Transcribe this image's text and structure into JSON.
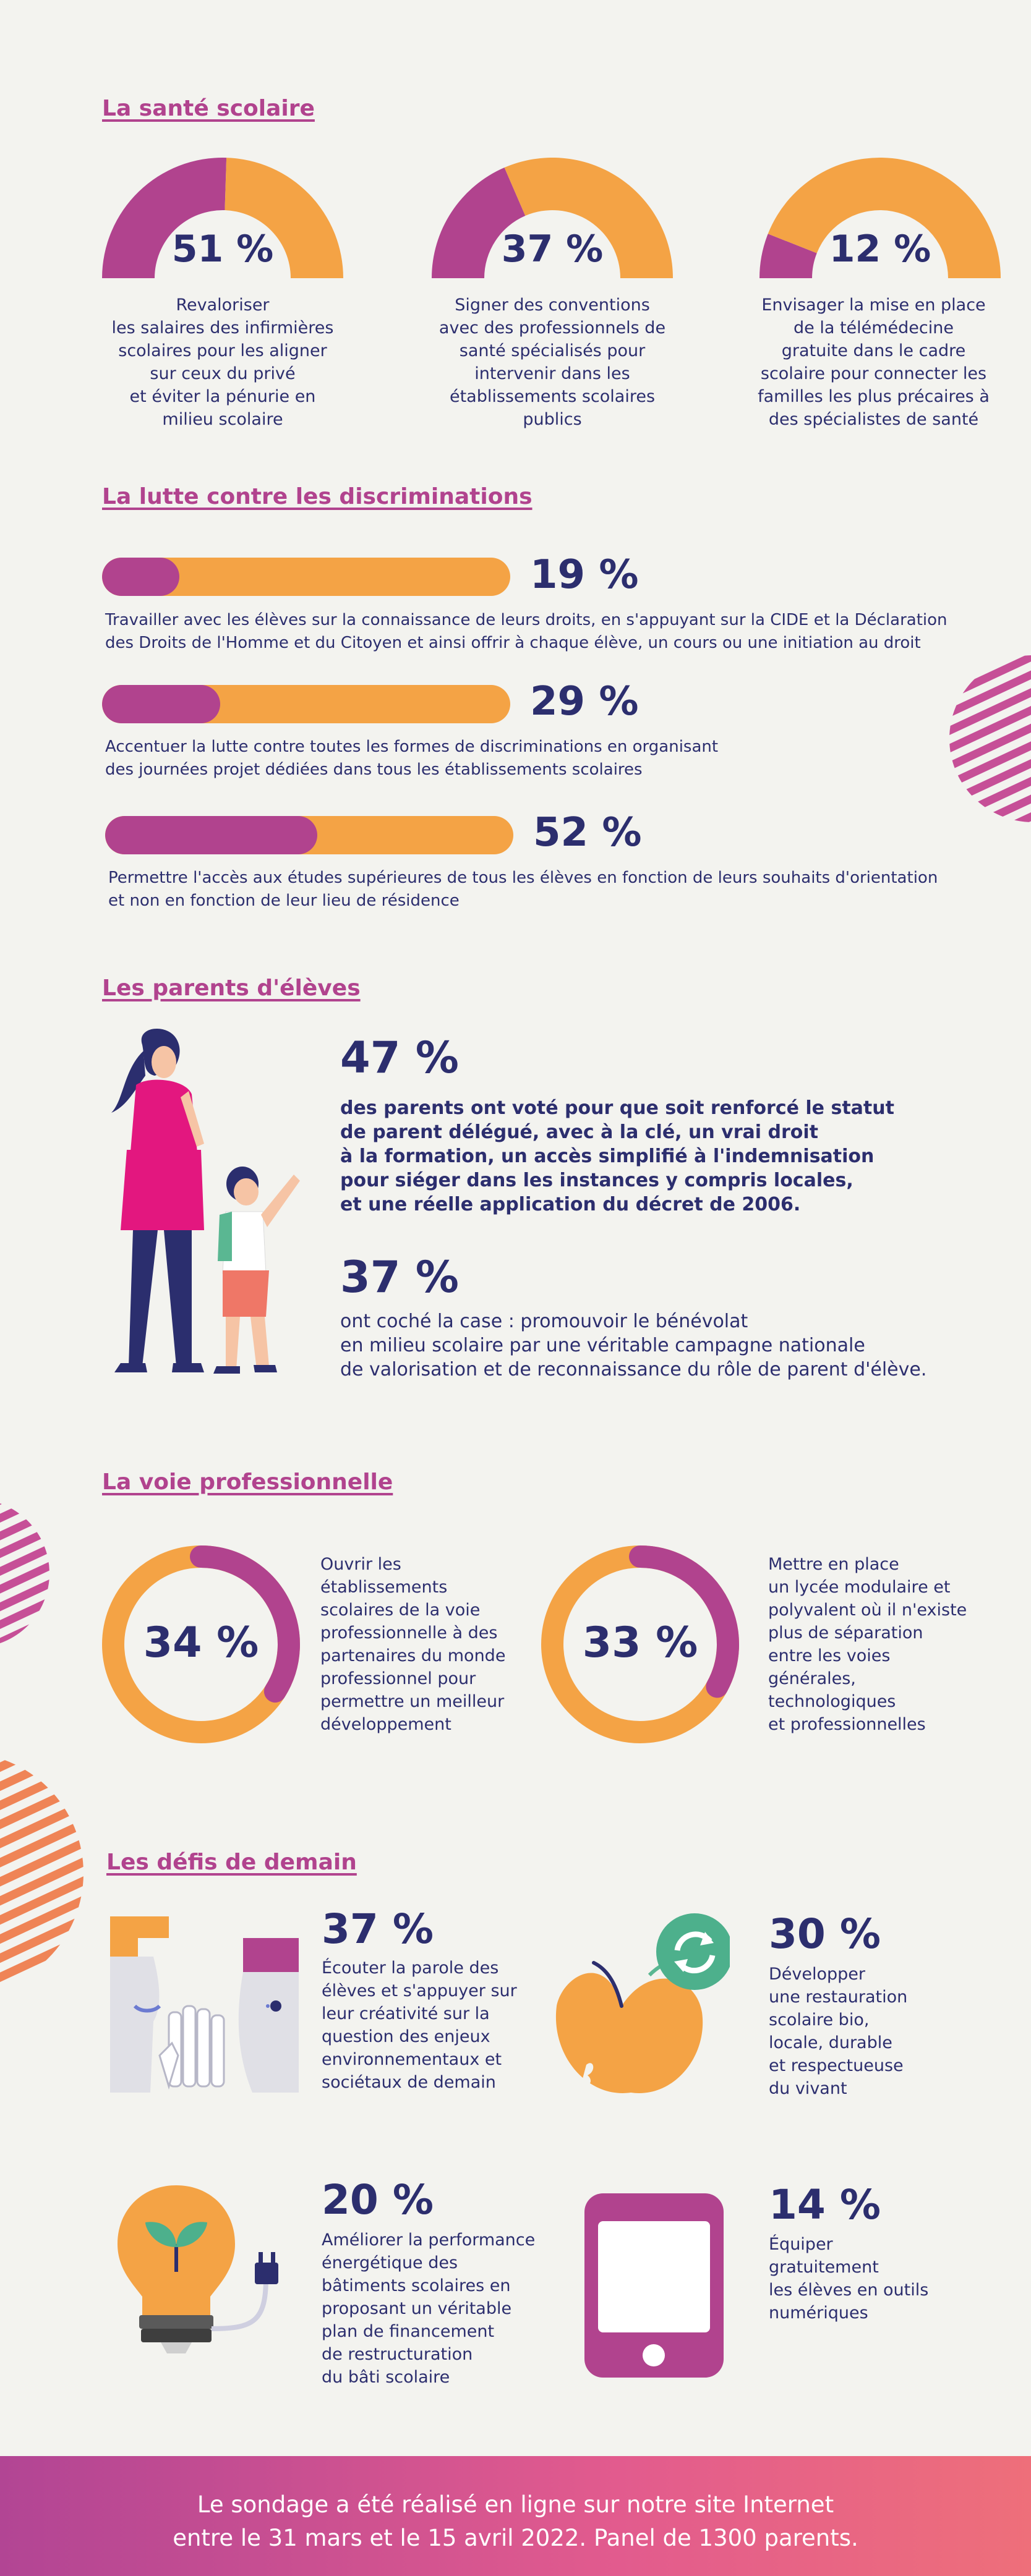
{
  "colors": {
    "purple": "#b1438e",
    "orange": "#f4a345",
    "navy": "#2c2e6e",
    "background": "#f3f3ef"
  },
  "sante": {
    "title": "La santé scolaire",
    "items": [
      {
        "pct": "51 %",
        "value": 51,
        "text": "Revaloriser\nles salaires des infirmières\nscolaires pour les aligner\nsur ceux du privé\net éviter la pénurie en\nmilieu scolaire"
      },
      {
        "pct": "37 %",
        "value": 37,
        "text": "Signer des conventions\navec des professionnels de\nsanté spécialisés pour\nintervenir dans les\nétablissements scolaires\npublics"
      },
      {
        "pct": "12 %",
        "value": 12,
        "text": "Envisager la mise en place\nde la télémédecine\ngratuite dans le cadre\nscolaire pour connecter les\nfamilles les plus précaires à\ndes spécialistes de santé"
      }
    ]
  },
  "discriminations": {
    "title": "La lutte contre les discriminations",
    "items": [
      {
        "pct": "19 %",
        "value": 19,
        "text": "Travailler avec les élèves sur la connaissance de leurs droits, en s'appuyant sur la CIDE et la Déclaration\ndes Droits de l'Homme et du Citoyen et ainsi offrir à chaque élève, un cours ou une initiation au droit"
      },
      {
        "pct": "29 %",
        "value": 29,
        "text": "Accentuer la lutte contre toutes les formes de discriminations en organisant\ndes journées projet dédiées dans tous les établissements scolaires"
      },
      {
        "pct": "52 %",
        "value": 52,
        "text": "Permettre l'accès aux études supérieures de tous les élèves en fonction de leurs souhaits d'orientation\net non en fonction de leur lieu de résidence"
      }
    ]
  },
  "parents": {
    "title": "Les parents d'élèves",
    "stat1_pct": "47 %",
    "stat1_text": "des parents ont voté pour que soit renforcé le statut\nde parent délégué, avec à la clé, un vrai droit\nà la formation, un accès simplifié à l'indemnisation\npour siéger dans les instances y compris locales,\net une réelle application du décret de 2006.",
    "stat2_pct": "37 %",
    "stat2_text": "ont coché la case : promouvoir le bénévolat\nen milieu scolaire par une véritable campagne nationale\nde valorisation et de reconnaissance du rôle de parent d'élève."
  },
  "pro": {
    "title": "La voie professionnelle",
    "items": [
      {
        "pct": "34 %",
        "value": 34,
        "text": "Ouvrir les\nétablissements\nscolaires de la voie\nprofessionnelle à des\npartenaires du monde\nprofessionnel pour\npermettre un meilleur\ndéveloppement"
      },
      {
        "pct": "33 %",
        "value": 33,
        "text": "Mettre en place\nun lycée modulaire et\npolyvalent où il n'existe\nplus de séparation\nentre les voies\ngénérales,\ntechnologiques\net professionnelles"
      }
    ]
  },
  "defis": {
    "title": "Les défis de demain",
    "items": [
      {
        "pct": "37 %",
        "icon": "faces-listening-icon",
        "text": "Écouter la parole des\nélèves et s'appuyer sur\nleur créativité sur la\nquestion des enjeux\nenvironnementaux et\nsociétaux de demain"
      },
      {
        "pct": "30 %",
        "icon": "apple-recycle-icon",
        "text": "Développer\nune restauration\nscolaire bio,\nlocale, durable\net respectueuse\ndu vivant"
      },
      {
        "pct": "20 %",
        "icon": "eco-lightbulb-icon",
        "text": "Améliorer la performance\nénergétique des\nbâtiments scolaires en\nproposant un véritable\nplan de financement\nde restructuration\ndu bâti scolaire"
      },
      {
        "pct": "14 %",
        "icon": "smartphone-icon",
        "text": "Équiper\ngratuitement\nles élèves en outils\nnumériques"
      }
    ]
  },
  "footer": {
    "line1": "Le sondage a été réalisé en ligne sur notre site Internet",
    "line2": "entre le 31 mars et le 15 avril 2022. Panel de 1300 parents."
  }
}
